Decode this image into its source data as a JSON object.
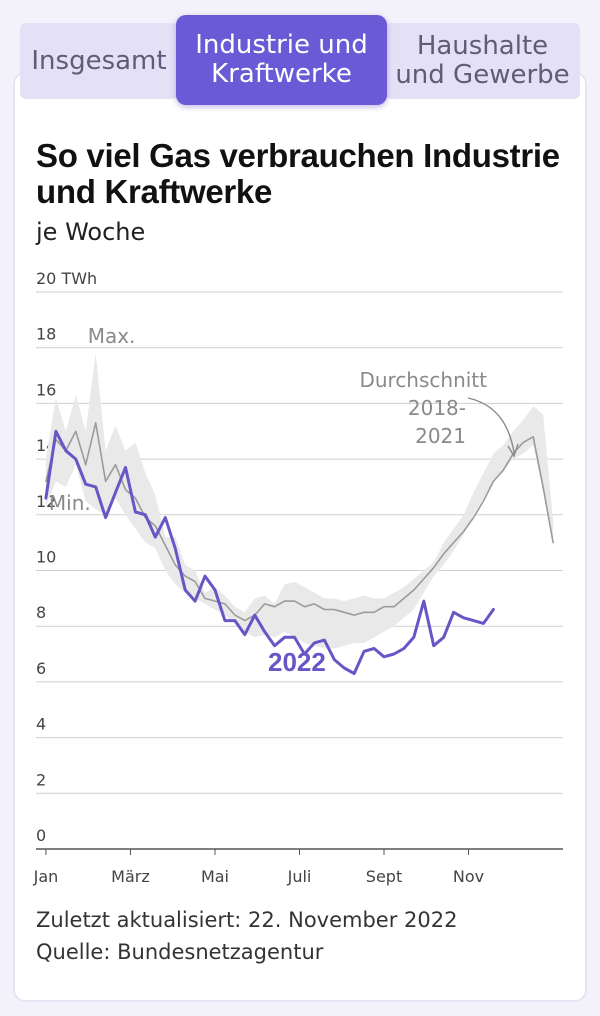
{
  "tabs": [
    {
      "label_line1": "Insgesamt",
      "label_line2": ""
    },
    {
      "label_line1": "Industrie und",
      "label_line2": "Kraftwerke"
    },
    {
      "label_line1": "Haushalte",
      "label_line2": "und Gewerbe"
    }
  ],
  "active_tab": 1,
  "footer": {
    "updated": "Zuletzt aktualisiert: 22. November 2022",
    "source": "Quelle: Bundesnetzagentur"
  },
  "colors": {
    "accent": "#6b5ad6",
    "line_2022": "#6a55c6",
    "average": "#9b9b9b",
    "band": "#e9e9e9"
  },
  "chart_data": {
    "type": "line",
    "title": "So viel Gas verbrauchen Industrie und Kraftwerke",
    "subtitle": "je Woche",
    "ylim": [
      0,
      20
    ],
    "yunit": "TWh",
    "y_ticks": [
      {
        "value": 0,
        "label": "0"
      },
      {
        "value": 2,
        "label": "2"
      },
      {
        "value": 4,
        "label": "4"
      },
      {
        "value": 6,
        "label": "6"
      },
      {
        "value": 8,
        "label": "8"
      },
      {
        "value": 10,
        "label": "10"
      },
      {
        "value": 12,
        "label": "12"
      },
      {
        "value": 14,
        "label": "14"
      },
      {
        "value": 16,
        "label": "16"
      },
      {
        "value": 18,
        "label": "18"
      },
      {
        "value": 20,
        "label": "20 TWh"
      }
    ],
    "xlim": [
      0,
      53
    ],
    "x_ticks": [
      {
        "week": 1,
        "label": "Jan"
      },
      {
        "week": 9.5,
        "label": "März"
      },
      {
        "week": 18,
        "label": "Mai"
      },
      {
        "week": 26.5,
        "label": "Juli"
      },
      {
        "week": 35,
        "label": "Sept"
      },
      {
        "week": 43.5,
        "label": "Nov"
      }
    ],
    "grid": true,
    "annotations": {
      "max": "Max.",
      "min": "Min.",
      "average_line1": "Durchschnitt",
      "average_line2": "2018-",
      "average_line3": "2021",
      "series_2022": "2022"
    },
    "series": [
      {
        "name": "Max.",
        "x": [
          1,
          2,
          3,
          4,
          5,
          6,
          7,
          8,
          9,
          10,
          11,
          12,
          13,
          14,
          15,
          16,
          17,
          18,
          19,
          20,
          21,
          22,
          23,
          24,
          25,
          26,
          27,
          28,
          29,
          30,
          31,
          32,
          33,
          34,
          35,
          36,
          37,
          38,
          39,
          40,
          41,
          42,
          43,
          44,
          45,
          46,
          47,
          48,
          49,
          50,
          51,
          52
        ],
        "values": [
          14.0,
          16.2,
          15.0,
          16.3,
          15.0,
          17.8,
          14.3,
          15.2,
          14.3,
          14.6,
          13.5,
          12.7,
          11.2,
          11.2,
          10.2,
          10.0,
          9.2,
          9.4,
          9.1,
          8.7,
          8.5,
          9.0,
          9.1,
          8.8,
          9.5,
          9.6,
          9.4,
          9.2,
          9.0,
          9.0,
          8.9,
          9.0,
          9.1,
          9.0,
          9.0,
          9.2,
          9.4,
          9.7,
          10.0,
          10.3,
          11.0,
          11.5,
          12.0,
          12.8,
          13.5,
          14.2,
          14.5,
          15.0,
          15.4,
          15.9,
          15.6,
          11.8
        ]
      },
      {
        "name": "Min.",
        "x": [
          1,
          2,
          3,
          4,
          5,
          6,
          7,
          8,
          9,
          10,
          11,
          12,
          13,
          14,
          15,
          16,
          17,
          18,
          19,
          20,
          21,
          22,
          23,
          24,
          25,
          26,
          27,
          28,
          29,
          30,
          31,
          32,
          33,
          34,
          35,
          36,
          37,
          38,
          39,
          40,
          41,
          42,
          43,
          44,
          45,
          46,
          47,
          48,
          49,
          50,
          51,
          52
        ],
        "values": [
          12.3,
          13.2,
          13.0,
          13.8,
          12.5,
          12.2,
          12.0,
          12.6,
          12.0,
          11.5,
          11.0,
          10.8,
          10.0,
          9.5,
          9.2,
          9.0,
          8.8,
          8.6,
          8.4,
          8.1,
          7.8,
          7.6,
          7.7,
          7.6,
          7.8,
          7.6,
          7.4,
          7.3,
          7.2,
          7.2,
          7.3,
          7.4,
          7.4,
          7.6,
          7.8,
          8.0,
          8.3,
          8.6,
          9.2,
          9.8,
          10.2,
          10.7,
          11.3,
          12.0,
          12.6,
          13.2,
          13.6,
          14.0,
          14.2,
          14.5,
          12.8,
          11.0
        ]
      },
      {
        "name": "Durchschnitt 2018-2021",
        "x": [
          1,
          2,
          3,
          4,
          5,
          6,
          7,
          8,
          9,
          10,
          11,
          12,
          13,
          14,
          15,
          16,
          17,
          18,
          19,
          20,
          21,
          22,
          23,
          24,
          25,
          26,
          27,
          28,
          29,
          30,
          31,
          32,
          33,
          34,
          35,
          36,
          37,
          38,
          39,
          40,
          41,
          42,
          43,
          44,
          45,
          46,
          47,
          48,
          49,
          50,
          51,
          52
        ],
        "values": [
          13.2,
          14.7,
          14.3,
          15.0,
          13.8,
          15.3,
          13.2,
          13.8,
          12.9,
          12.6,
          11.9,
          11.6,
          10.9,
          10.2,
          9.8,
          9.6,
          9.0,
          8.9,
          8.8,
          8.4,
          8.2,
          8.4,
          8.8,
          8.7,
          8.9,
          8.9,
          8.7,
          8.8,
          8.6,
          8.6,
          8.5,
          8.4,
          8.5,
          8.5,
          8.7,
          8.7,
          9.0,
          9.3,
          9.7,
          10.1,
          10.6,
          11.0,
          11.4,
          11.9,
          12.5,
          13.2,
          13.6,
          14.2,
          14.6,
          14.8,
          13.0,
          11.0
        ]
      },
      {
        "name": "2022",
        "x": [
          1,
          2,
          3,
          4,
          5,
          6,
          7,
          8,
          9,
          10,
          11,
          12,
          13,
          14,
          15,
          16,
          17,
          18,
          19,
          20,
          21,
          22,
          23,
          24,
          25,
          26,
          27,
          28,
          29,
          30,
          31,
          32,
          33,
          34,
          35,
          36,
          37,
          38,
          39,
          40,
          41,
          42,
          43,
          44,
          45,
          46
        ],
        "values": [
          12.6,
          15.0,
          14.3,
          14.0,
          13.1,
          13.0,
          11.9,
          12.8,
          13.7,
          12.1,
          12.0,
          11.2,
          11.9,
          10.8,
          9.3,
          8.9,
          9.8,
          9.3,
          8.2,
          8.2,
          7.7,
          8.4,
          7.8,
          7.3,
          7.6,
          7.6,
          7.0,
          7.4,
          7.5,
          6.8,
          6.5,
          6.3,
          7.1,
          7.2,
          6.9,
          7.0,
          7.2,
          7.6,
          8.9,
          7.3,
          7.6,
          8.5,
          8.3,
          8.2,
          8.1,
          8.6
        ]
      }
    ]
  }
}
